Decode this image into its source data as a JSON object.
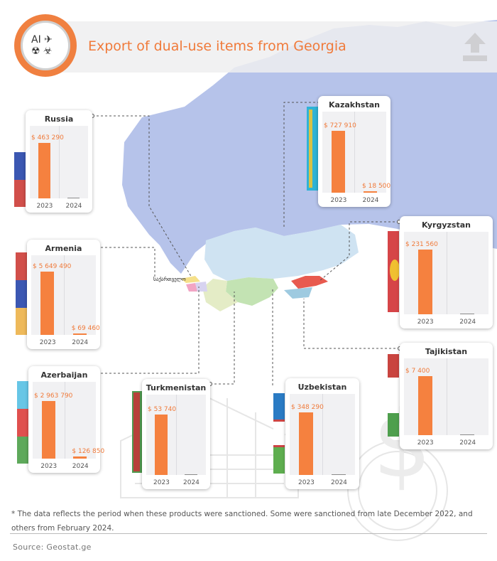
{
  "header": {
    "title": "Export of dual-use items from Georgia",
    "logo_glyphs": "AI ✈\n☢ ☣"
  },
  "map": {
    "georgia_label": "საქართველო"
  },
  "chart_data": {
    "type": "bar",
    "title": "Export of dual-use items from Georgia",
    "categories": [
      "2023",
      "2024"
    ],
    "units": "$",
    "panels": [
      {
        "country": "Russia",
        "values": [
          463290,
          0
        ],
        "labels": [
          "$ 463 290",
          ""
        ]
      },
      {
        "country": "Kazakhstan",
        "values": [
          727910,
          18500
        ],
        "labels": [
          "$ 727 910",
          "$ 18 500"
        ]
      },
      {
        "country": "Armenia",
        "values": [
          5649490,
          69460
        ],
        "labels": [
          "$ 5 649 490",
          "$ 69 460"
        ]
      },
      {
        "country": "Kyrgyzstan",
        "values": [
          231560,
          0
        ],
        "labels": [
          "$ 231 560",
          ""
        ]
      },
      {
        "country": "Azerbaijan",
        "values": [
          2963790,
          126850
        ],
        "labels": [
          "$ 2 963 790",
          "$ 126 850"
        ]
      },
      {
        "country": "Turkmenistan",
        "values": [
          53740,
          0
        ],
        "labels": [
          "$ 53 740",
          ""
        ]
      },
      {
        "country": "Uzbekistan",
        "values": [
          348290,
          0
        ],
        "labels": [
          "$ 348 290",
          ""
        ]
      },
      {
        "country": "Tajikistan",
        "values": [
          7400,
          0
        ],
        "labels": [
          "$ 7 400",
          ""
        ]
      }
    ]
  },
  "colors": {
    "bar": "#f5813f",
    "accent": "#f07a3a",
    "russia_map": "#b6c3ea",
    "central_asia_map": "#cfe3f2"
  },
  "footnote": "* The data reflects the period when these products were sanctioned. Some were sanctioned from late December 2022, and others from February 2024.",
  "source": "Source: Geostat.ge"
}
